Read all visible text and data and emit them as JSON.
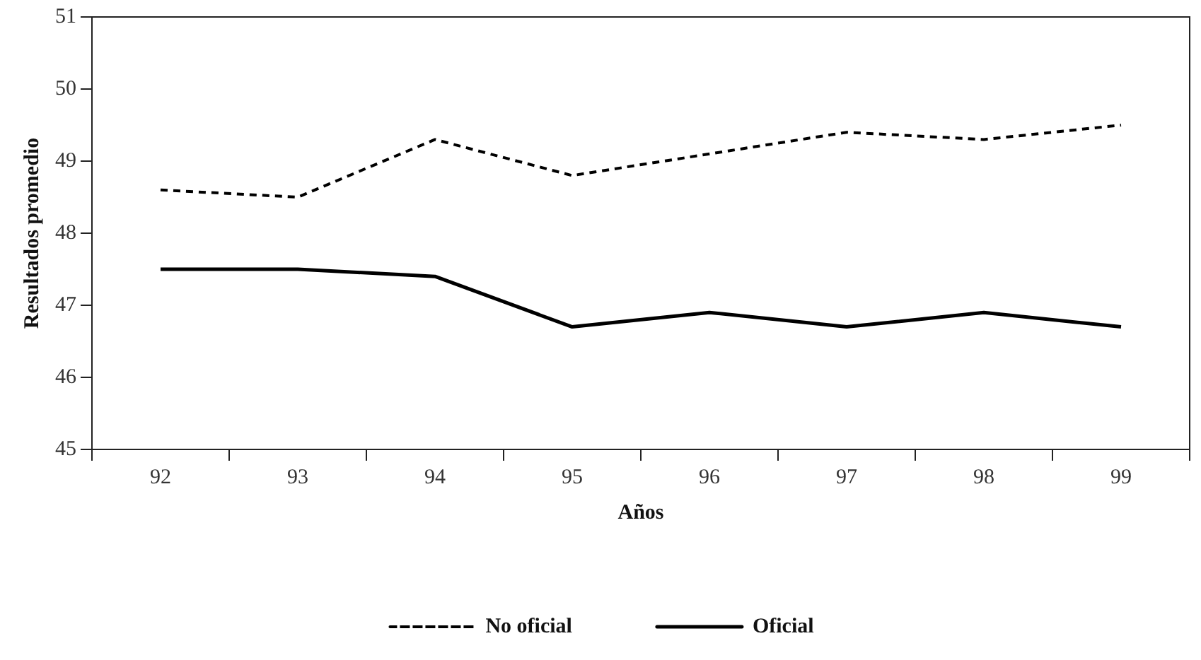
{
  "chart_data": {
    "type": "line",
    "xlabel": "Años",
    "ylabel": "Resultados promedio",
    "categories": [
      "92",
      "93",
      "94",
      "95",
      "96",
      "97",
      "98",
      "99"
    ],
    "ylim": [
      45,
      51
    ],
    "yticks": [
      45,
      46,
      47,
      48,
      49,
      50,
      51
    ],
    "grid": false,
    "legend": "bottom",
    "series": [
      {
        "name": "No oficial",
        "color": "#000000",
        "line_style": "dashed",
        "values": [
          48.6,
          48.5,
          49.3,
          48.8,
          49.1,
          49.4,
          49.3,
          49.5
        ]
      },
      {
        "name": "Oficial",
        "color": "#000000",
        "line_style": "solid",
        "values": [
          47.5,
          47.5,
          47.4,
          46.7,
          46.9,
          46.7,
          46.9,
          46.7
        ]
      }
    ]
  }
}
